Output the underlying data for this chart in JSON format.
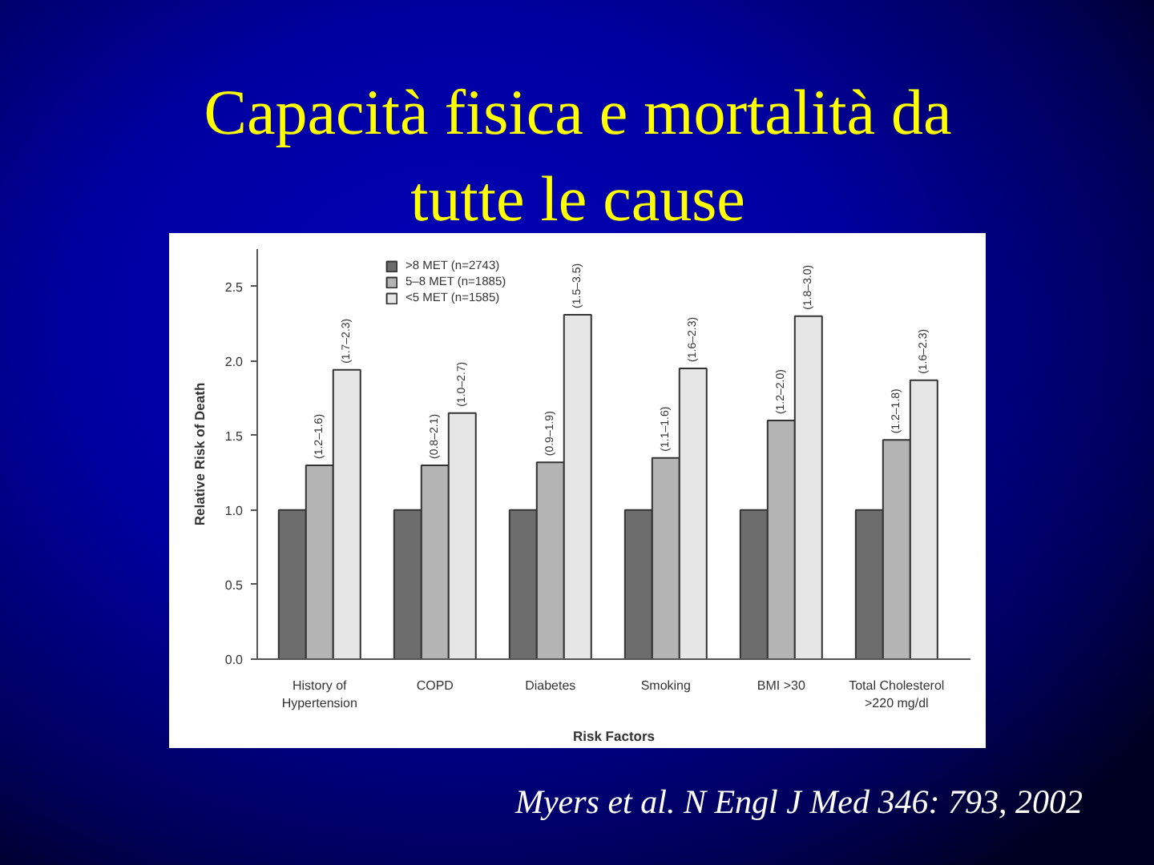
{
  "chart_data": {
    "type": "bar",
    "title": "Capacità fisica e mortalità da\ntutte le cause",
    "xlabel": "Risk Factors",
    "ylabel": "Relative Risk of Death",
    "categories": [
      "History of\nHypertension",
      "COPD",
      "Diabetes",
      "Smoking",
      "BMI >30",
      "Total Cholesterol\n>220 mg/dl"
    ],
    "series": [
      {
        "name": ">8 MET (n=2743)",
        "color": "#6d6d6d",
        "values": [
          1,
          1,
          1,
          1,
          1,
          1
        ]
      },
      {
        "name": "5–8 MET (n=1885)",
        "color": "#b4b4b4",
        "values": [
          1.3,
          1.3,
          1.32,
          1.35,
          1.6,
          1.47
        ],
        "value_labels": [
          "(1.2–1.6)",
          "(0.8–2.1)",
          "(0.9–1.9)",
          "(1.1–1.6)",
          "(1.2–2.0)",
          "(1.2–1.8)"
        ]
      },
      {
        "name": "<5 MET (n=1585)",
        "color": "#e6e6e6",
        "values": [
          1.94,
          1.65,
          2.31,
          1.95,
          2.3,
          1.87
        ],
        "value_labels": [
          "(1.7–2.3)",
          "(1.0–2.7)",
          "(1.5–3.5)",
          "(1.6–2.3)",
          "(1.8–3.0)",
          "(1.6–2.3)"
        ]
      }
    ],
    "ylim": [
      0,
      2.75
    ],
    "yticks": [
      {
        "value": 0,
        "label": "0.0"
      },
      {
        "value": 0.5,
        "label": "0.5"
      },
      {
        "value": 1,
        "label": "1.0"
      },
      {
        "value": 1.5,
        "label": "1.5"
      },
      {
        "value": 2,
        "label": "2.0"
      },
      {
        "value": 2.5,
        "label": "2.5"
      }
    ],
    "legend": "top left",
    "annotations": [
      "Myers et al. N Engl J Med 346: 793, 2002"
    ]
  }
}
